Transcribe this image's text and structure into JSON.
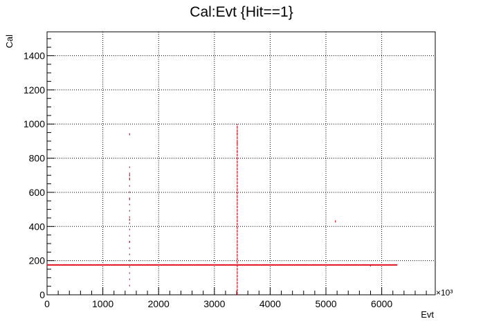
{
  "chart_data": {
    "type": "scatter",
    "title": "Cal:Evt {Hit==1}",
    "xlabel": "Evt",
    "ylabel": "Cal",
    "x_multiplier_label": "×10³",
    "xlim": [
      0,
      6960
    ],
    "ylim": [
      0,
      1540
    ],
    "x_ticks": [
      0,
      1000,
      2000,
      3000,
      4000,
      5000,
      6000
    ],
    "x_tick_labels": [
      "0",
      "1000",
      "2000",
      "3000",
      "4000",
      "5000",
      "6000"
    ],
    "y_ticks": [
      0,
      200,
      400,
      600,
      800,
      1000,
      1200,
      1400
    ],
    "y_tick_labels": [
      "0",
      "200",
      "400",
      "600",
      "800",
      "1000",
      "1200",
      "1400"
    ],
    "grid": true,
    "marker_color": "#e0101e",
    "series": [
      {
        "values": [
          {
            "x": 0,
            "y": 175,
            "x_end": 6280
          },
          {
            "x": 3410,
            "y": 0,
            "y_end": 1000
          },
          {
            "x": 1480,
            "y": 50,
            "y_end": 780
          },
          {
            "x": 1480,
            "y": 940
          },
          {
            "x": 1480,
            "y": 700
          },
          {
            "x": 1480,
            "y": 680
          },
          {
            "x": 1480,
            "y": 560
          },
          {
            "x": 1480,
            "y": 440
          },
          {
            "x": 1480,
            "y": 310
          },
          {
            "x": 3410,
            "y": 945
          },
          {
            "x": 3410,
            "y": 890
          },
          {
            "x": 3410,
            "y": 840
          },
          {
            "x": 5170,
            "y": 430
          },
          {
            "x": 5800,
            "y": 172
          }
        ]
      }
    ]
  }
}
